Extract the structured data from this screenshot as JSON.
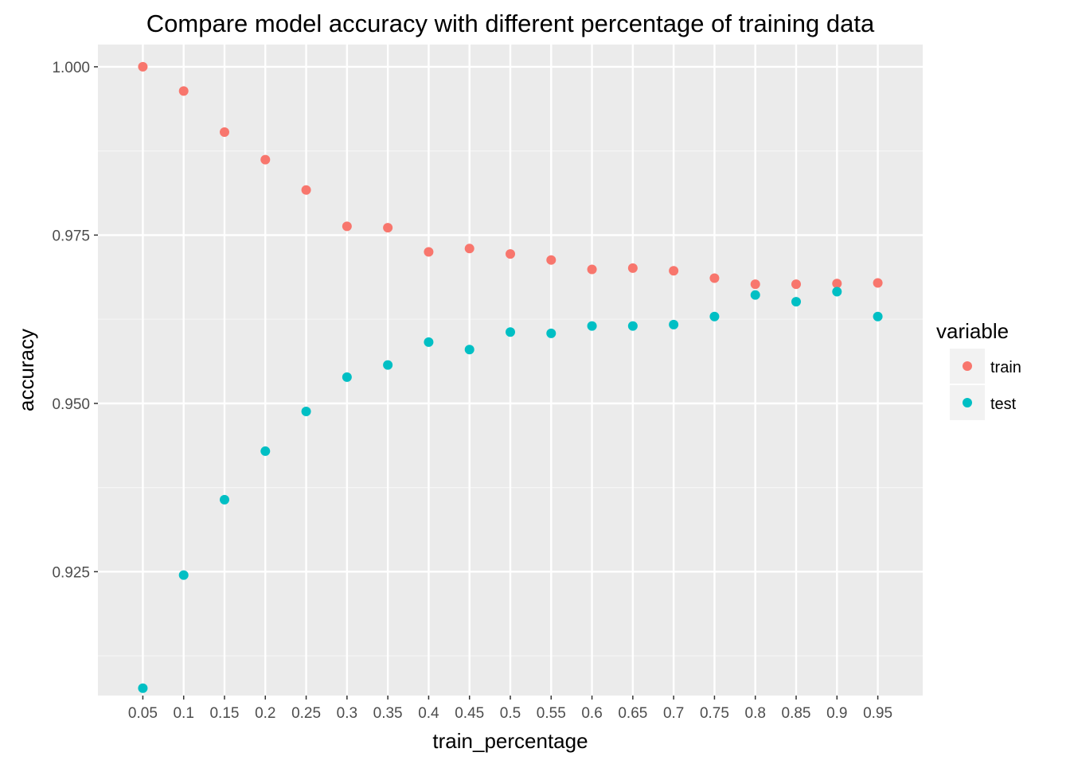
{
  "chart_data": {
    "type": "scatter",
    "title": "Compare model accuracy with different percentage of training data",
    "xlabel": "train_percentage",
    "ylabel": "accuracy",
    "x": [
      "0.05",
      "0.1",
      "0.15",
      "0.2",
      "0.25",
      "0.3",
      "0.35",
      "0.4",
      "0.45",
      "0.5",
      "0.55",
      "0.6",
      "0.65",
      "0.7",
      "0.75",
      "0.8",
      "0.85",
      "0.9",
      "0.95"
    ],
    "ylim": [
      0.9066,
      1.0033
    ],
    "yticks": [
      {
        "value": 0.925,
        "label": "0.925"
      },
      {
        "value": 0.95,
        "label": "0.950"
      },
      {
        "value": 0.975,
        "label": "0.975"
      },
      {
        "value": 1.0,
        "label": "1.000"
      }
    ],
    "y_minor_ticks": [
      0.9125,
      0.9375,
      0.9625,
      0.9875
    ],
    "grid": true,
    "legend": {
      "title": "variable",
      "position": "right"
    },
    "series": [
      {
        "name": "train",
        "color": "#F8766D",
        "values": [
          1.0,
          0.9964,
          0.9903,
          0.9862,
          0.9817,
          0.9763,
          0.9761,
          0.9725,
          0.973,
          0.9722,
          0.9713,
          0.9699,
          0.9701,
          0.9697,
          0.9686,
          0.9677,
          0.9677,
          0.9678,
          0.9679
        ]
      },
      {
        "name": "test",
        "color": "#00BFC4",
        "values": [
          0.9077,
          0.9245,
          0.9357,
          0.9429,
          0.9488,
          0.9539,
          0.9557,
          0.9591,
          0.958,
          0.9606,
          0.9604,
          0.9615,
          0.9615,
          0.9617,
          0.9629,
          0.9661,
          0.9651,
          0.9666,
          0.9629
        ]
      }
    ]
  }
}
